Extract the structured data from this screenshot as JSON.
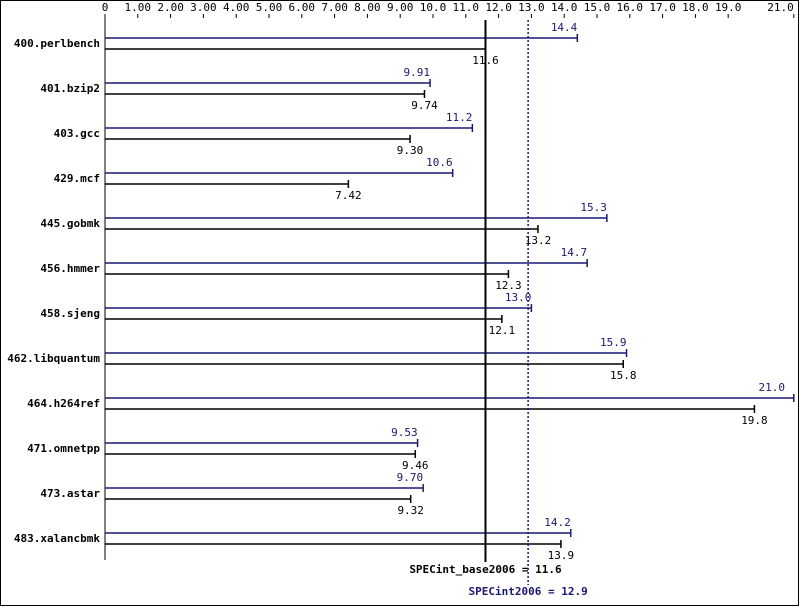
{
  "chart_data": {
    "type": "spec-bar",
    "categories": [
      "400.perlbench",
      "401.bzip2",
      "403.gcc",
      "429.mcf",
      "445.gobmk",
      "456.hmmer",
      "458.sjeng",
      "462.libquantum",
      "464.h264ref",
      "471.omnetpp",
      "473.astar",
      "483.xalancbmk"
    ],
    "series": [
      {
        "color": "#191970",
        "values": [
          14.4,
          9.91,
          11.2,
          10.6,
          15.3,
          14.7,
          13.0,
          15.9,
          21.0,
          9.53,
          9.7,
          14.2
        ],
        "value_labels": [
          "14.4",
          "9.91",
          "11.2",
          "10.6",
          "15.3",
          "14.7",
          "13.0",
          "15.9",
          "21.0",
          "9.53",
          "9.70",
          "14.2"
        ]
      },
      {
        "color": "#000000",
        "values": [
          11.6,
          9.74,
          9.3,
          7.42,
          13.2,
          12.3,
          12.1,
          15.8,
          19.8,
          9.46,
          9.32,
          13.9
        ],
        "value_labels": [
          "11.6",
          "9.74",
          "9.30",
          "7.42",
          "13.2",
          "12.3",
          "12.1",
          "15.8",
          "19.8",
          "9.46",
          "9.32",
          "13.9"
        ]
      }
    ],
    "xlim": [
      0,
      21
    ],
    "xticks": [
      0,
      {
        "value": 1,
        "label": "1.00"
      },
      {
        "value": 2,
        "label": "2.00"
      },
      {
        "value": 3,
        "label": "3.00"
      },
      {
        "value": 4,
        "label": "4.00"
      },
      {
        "value": 5,
        "label": "5.00"
      },
      {
        "value": 6,
        "label": "6.00"
      },
      {
        "value": 7,
        "label": "7.00"
      },
      {
        "value": 8,
        "label": "8.00"
      },
      {
        "value": 9,
        "label": "9.00"
      },
      {
        "value": 10,
        "label": "10.0"
      },
      {
        "value": 11,
        "label": "11.0"
      },
      {
        "value": 12,
        "label": "12.0"
      },
      {
        "value": 13,
        "label": "13.0"
      },
      {
        "value": 14,
        "label": "14.0"
      },
      {
        "value": 15,
        "label": "15.0"
      },
      {
        "value": 16,
        "label": "16.0"
      },
      {
        "value": 17,
        "label": "17.0"
      },
      {
        "value": 18,
        "label": "18.0"
      },
      {
        "value": 19,
        "label": "19.0"
      },
      {
        "value": 21,
        "label": "21.0"
      }
    ],
    "base_mean": {
      "label": "SPECint_base2006 = 11.6",
      "value": 11.6
    },
    "peak_mean": {
      "label": "SPECint2006 = 12.9",
      "value": 12.9
    }
  }
}
